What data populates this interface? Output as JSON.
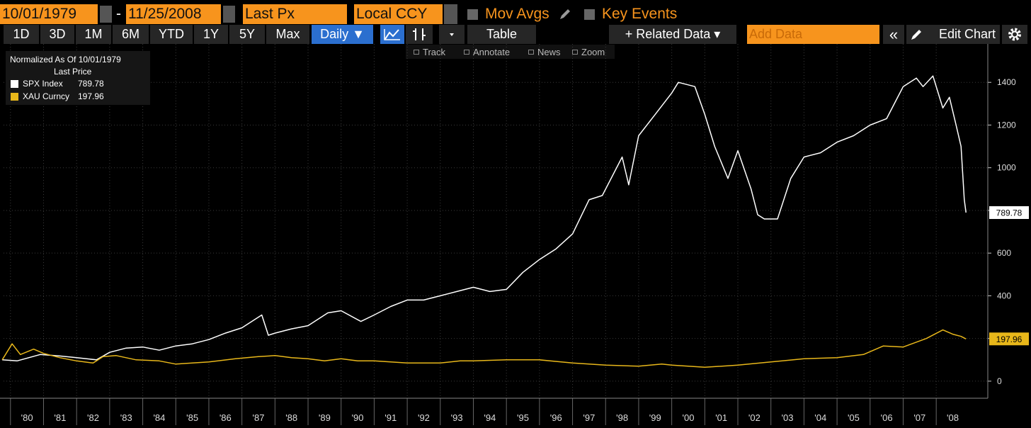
{
  "toolbar": {
    "start_date": "10/01/1979",
    "separator": "-",
    "end_date": "11/25/2008",
    "field": "Last Px",
    "currency": "Local CCY",
    "mov_avgs": "Mov Avgs",
    "key_events": "Key Events"
  },
  "periods": [
    "1D",
    "3D",
    "1M",
    "6M",
    "YTD",
    "1Y",
    "5Y",
    "Max"
  ],
  "frequency": "Daily ▼",
  "table": "Table",
  "related_data": "+ Related Data ▾",
  "add_data": "Add Data",
  "collapse": "«",
  "edit_chart": "Edit Chart",
  "tools": [
    "Track",
    "Annotate",
    "News",
    "Zoom"
  ],
  "chart_data": {
    "type": "line",
    "legend_title": "Normalized As Of 10/01/1979",
    "legend_subtitle": "Last Price",
    "xlim": [
      1979.79,
      2009.56
    ],
    "ylim": [
      -80,
      1580
    ],
    "yticks": [
      0,
      200,
      400,
      600,
      800,
      1000,
      1200,
      1400
    ],
    "xticks": [
      {
        "value": 1980,
        "label": "'80"
      },
      {
        "value": 1981,
        "label": "'81"
      },
      {
        "value": 1982,
        "label": "'82"
      },
      {
        "value": 1983,
        "label": "'83"
      },
      {
        "value": 1984,
        "label": "'84"
      },
      {
        "value": 1985,
        "label": "'85"
      },
      {
        "value": 1986,
        "label": "'86"
      },
      {
        "value": 1987,
        "label": "'87"
      },
      {
        "value": 1988,
        "label": "'88"
      },
      {
        "value": 1989,
        "label": "'89"
      },
      {
        "value": 1990,
        "label": "'90"
      },
      {
        "value": 1991,
        "label": "'91"
      },
      {
        "value": 1992,
        "label": "'92"
      },
      {
        "value": 1993,
        "label": "'93"
      },
      {
        "value": 1994,
        "label": "'94"
      },
      {
        "value": 1995,
        "label": "'95"
      },
      {
        "value": 1996,
        "label": "'96"
      },
      {
        "value": 1997,
        "label": "'97"
      },
      {
        "value": 1998,
        "label": "'98"
      },
      {
        "value": 1999,
        "label": "'99"
      },
      {
        "value": 2000,
        "label": "'00"
      },
      {
        "value": 2001,
        "label": "'01"
      },
      {
        "value": 2002,
        "label": "'02"
      },
      {
        "value": 2003,
        "label": "'03"
      },
      {
        "value": 2004,
        "label": "'04"
      },
      {
        "value": 2005,
        "label": "'05"
      },
      {
        "value": 2006,
        "label": "'06"
      },
      {
        "value": 2007,
        "label": "'07"
      },
      {
        "value": 2008,
        "label": "'08"
      }
    ],
    "grid": true,
    "series": [
      {
        "name": "SPX Index",
        "color": "#ffffff",
        "x": [
          1979.75,
          1980.2,
          1980.9,
          1981.5,
          1982.0,
          1982.6,
          1983.0,
          1983.5,
          1984.0,
          1984.5,
          1985.0,
          1985.5,
          1986.0,
          1986.5,
          1987.0,
          1987.6,
          1987.8,
          1988.0,
          1988.5,
          1989.0,
          1989.6,
          1990.0,
          1990.6,
          1991.0,
          1991.5,
          1992.0,
          1992.5,
          1993.0,
          1993.5,
          1994.0,
          1994.5,
          1995.0,
          1995.5,
          1996.0,
          1996.5,
          1997.0,
          1997.5,
          1997.9,
          1998.5,
          1998.7,
          1999.0,
          1999.5,
          2000.0,
          2000.2,
          2000.7,
          2001.0,
          2001.3,
          2001.7,
          2002.0,
          2002.4,
          2002.6,
          2002.8,
          2003.2,
          2003.6,
          2004.0,
          2004.5,
          2005.0,
          2005.5,
          2006.0,
          2006.5,
          2007.0,
          2007.4,
          2007.6,
          2007.9,
          2008.2,
          2008.4,
          2008.6,
          2008.75,
          2008.85,
          2008.9
        ],
        "values": [
          100,
          95,
          125,
          118,
          110,
          100,
          135,
          155,
          160,
          145,
          165,
          175,
          195,
          225,
          250,
          310,
          215,
          225,
          245,
          260,
          320,
          330,
          280,
          310,
          350,
          380,
          380,
          400,
          420,
          440,
          420,
          430,
          510,
          570,
          620,
          690,
          850,
          870,
          1050,
          920,
          1150,
          1250,
          1350,
          1400,
          1380,
          1250,
          1100,
          950,
          1080,
          900,
          780,
          760,
          760,
          950,
          1050,
          1070,
          1120,
          1150,
          1200,
          1230,
          1380,
          1420,
          1380,
          1430,
          1280,
          1330,
          1200,
          1100,
          850,
          789.78
        ]
      },
      {
        "name": "XAU Curncy",
        "color": "#e8b71a",
        "x": [
          1979.75,
          1980.05,
          1980.3,
          1980.7,
          1981.0,
          1981.5,
          1982.0,
          1982.5,
          1982.8,
          1983.2,
          1983.8,
          1984.5,
          1985.0,
          1985.5,
          1986.0,
          1986.8,
          1987.5,
          1988.0,
          1988.5,
          1989.0,
          1989.5,
          1990.0,
          1990.5,
          1991.0,
          1992.0,
          1993.0,
          1993.6,
          1994.0,
          1995.0,
          1996.0,
          1997.0,
          1998.0,
          1999.0,
          1999.7,
          2000.0,
          2001.0,
          2002.0,
          2003.0,
          2004.0,
          2005.0,
          2005.8,
          2006.4,
          2007.0,
          2007.7,
          2008.2,
          2008.5,
          2008.75,
          2008.9
        ],
        "values": [
          100,
          175,
          125,
          150,
          130,
          110,
          95,
          85,
          115,
          120,
          100,
          95,
          80,
          85,
          90,
          105,
          115,
          120,
          110,
          105,
          95,
          105,
          95,
          95,
          85,
          85,
          95,
          95,
          100,
          100,
          85,
          75,
          70,
          80,
          75,
          65,
          75,
          90,
          105,
          110,
          125,
          165,
          160,
          200,
          240,
          220,
          210,
          197.96
        ]
      }
    ]
  }
}
